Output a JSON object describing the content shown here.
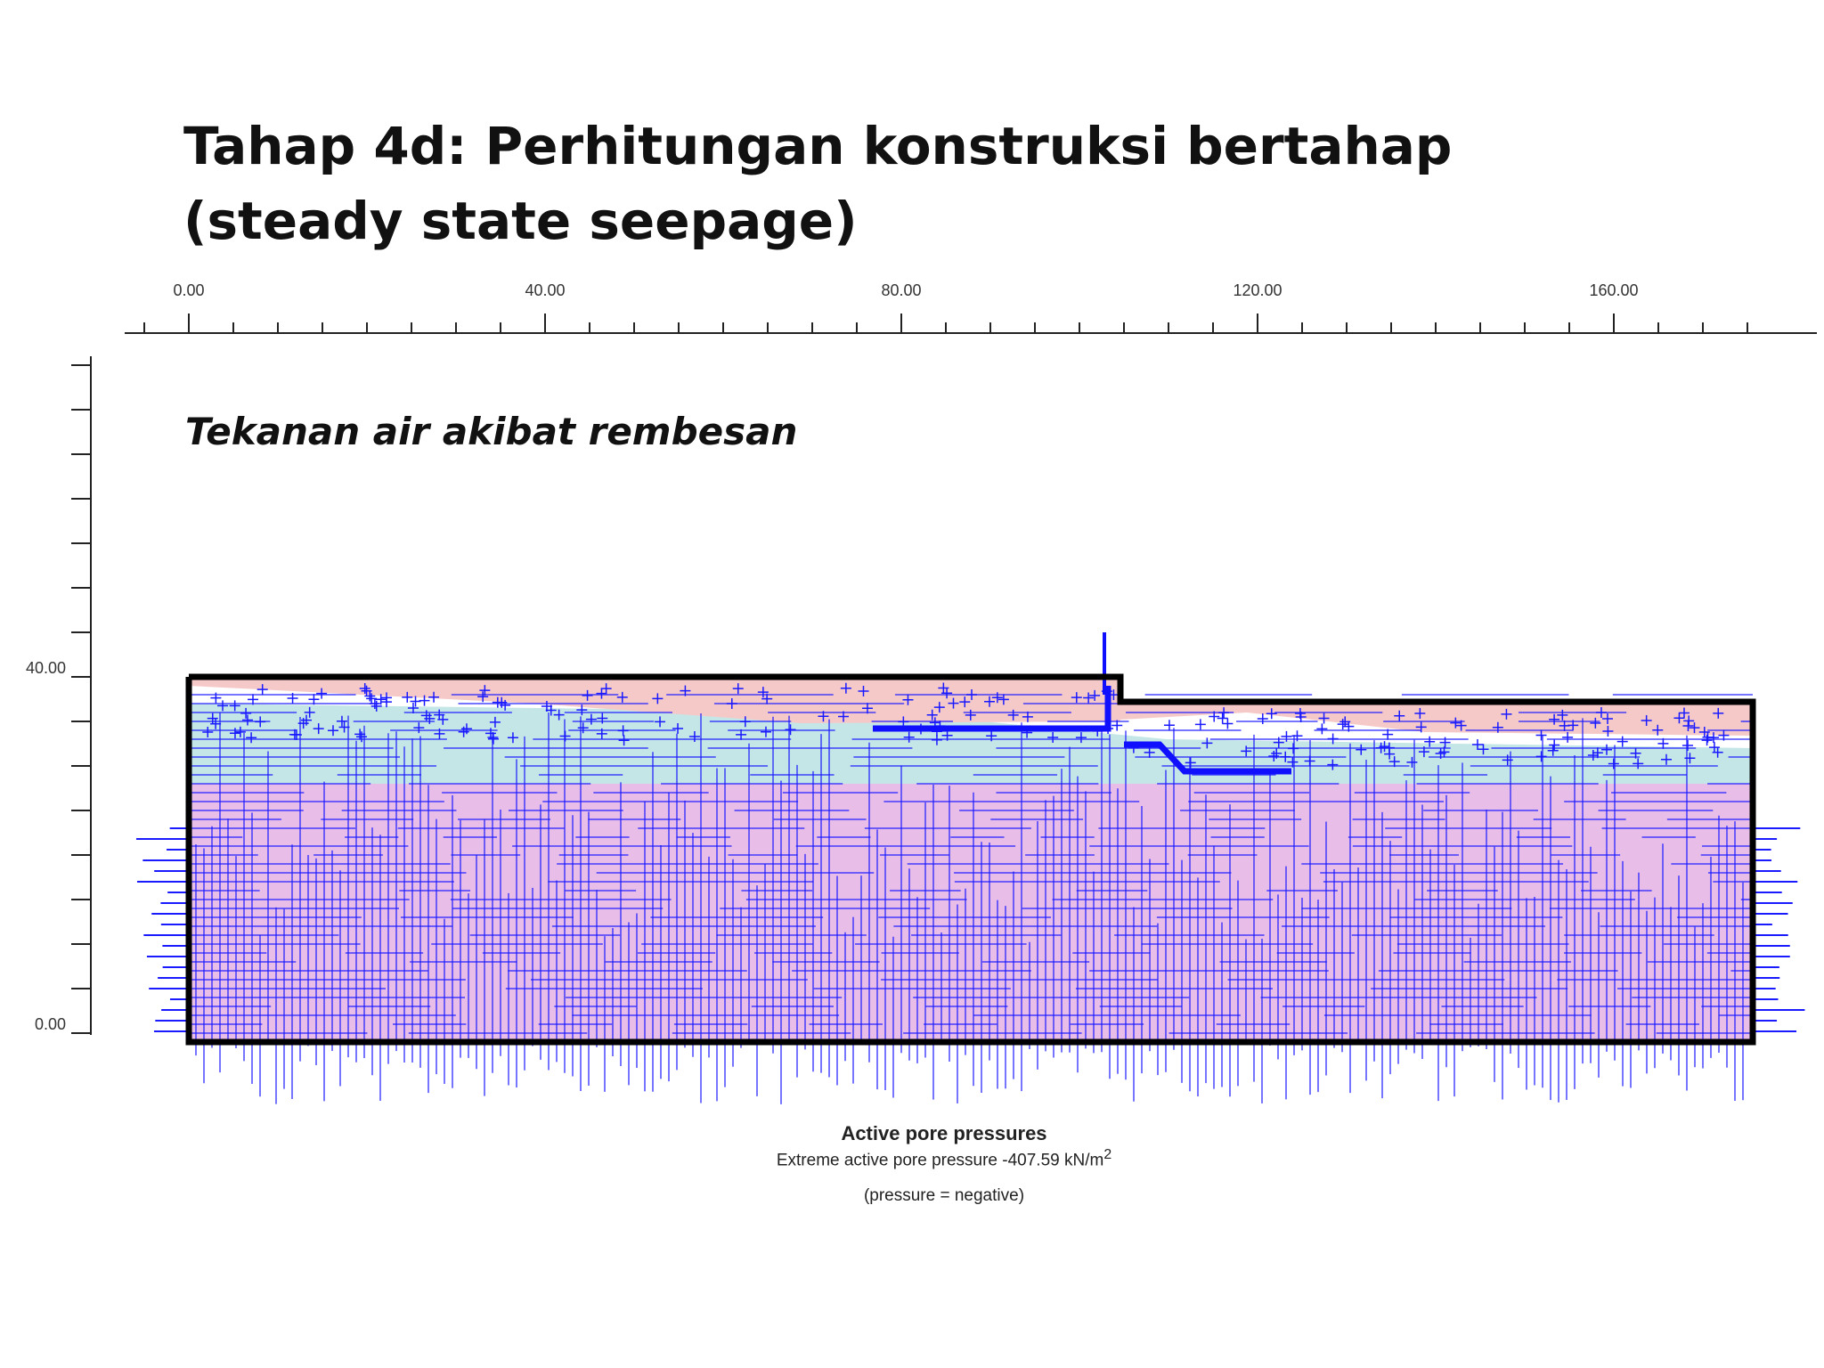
{
  "slide": {
    "title_line1": "Tahap 4d: Perhitungan konstruksi bertahap",
    "title_line2": "(steady state seepage)",
    "subtitle": "Tekanan air akibat rembesan"
  },
  "axes": {
    "x_ticks": [
      "0.00",
      "40.00",
      "80.00",
      "120.00",
      "160.00"
    ],
    "y_ticks": [
      "40.00",
      "0.00"
    ]
  },
  "caption": {
    "title": "Active pore pressures",
    "line": "Extreme active pore pressure -407.59 kN/m",
    "superscript": "2",
    "note": "(pressure = negative)"
  },
  "colors": {
    "arrows": "#1a1aff",
    "soil_top": "#f4c6c6",
    "soil_middle": "#bfe6e6",
    "soil_lower": "#e6b3e6",
    "boundary": "#000000"
  }
}
